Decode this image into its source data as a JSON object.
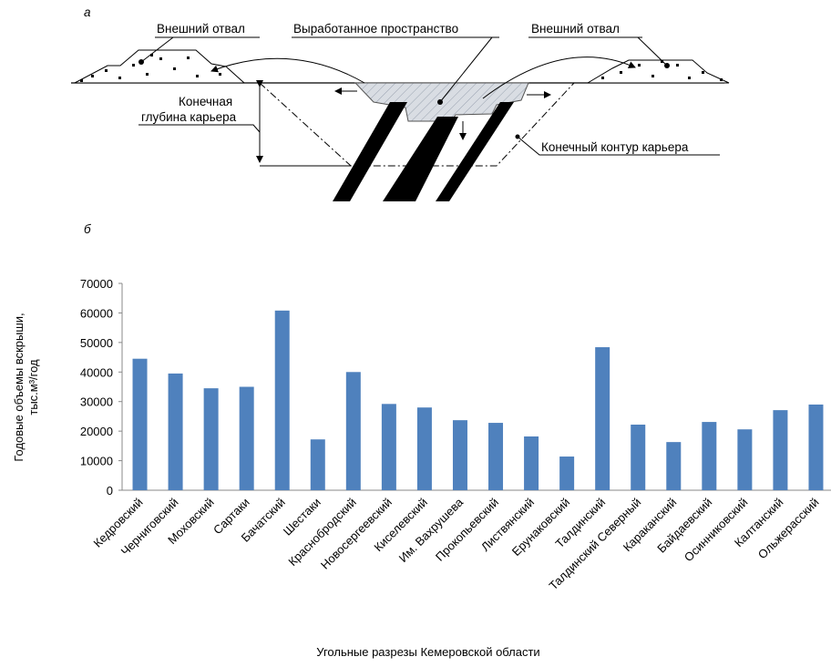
{
  "diagram": {
    "panel_label": "а",
    "labels": {
      "left_dump": "Внешний отвал",
      "mined_space": "Выработанное пространство",
      "right_dump": "Внешний отвал",
      "depth_line1": "Конечная",
      "depth_line2": "глубина карьера",
      "contour": "Конечный контур карьера"
    }
  },
  "chart_panel_label": "б",
  "chart_data": {
    "type": "bar",
    "y_label_lines": [
      "Годовые объемы вскрыши,",
      "тыс.м³/год"
    ],
    "x_label": "Угольные разрезы Кемеровской области",
    "categories": [
      "Кедровский",
      "Черниговский",
      "Моховский",
      "Сартаки",
      "Бачатский",
      "Шестаки",
      "Краснобродский",
      "Новосергеевский",
      "Киселевский",
      "Им. Вахрушева",
      "Прокопьевский",
      "Листвянский",
      "Ерунаковский",
      "Талдинский",
      "Талдинский Северный",
      "Караканский",
      "Байдаевский",
      "Осинниковский",
      "Калтанский",
      "Ольжерасский"
    ],
    "values": [
      44500,
      39500,
      34500,
      35000,
      60800,
      17200,
      40000,
      29200,
      28000,
      23700,
      22800,
      18200,
      11400,
      48400,
      22200,
      16300,
      23100,
      20600,
      27100,
      29000
    ],
    "color": "#4f81bd",
    "ylim": [
      0,
      70000
    ],
    "yticks": [
      0,
      10000,
      20000,
      30000,
      40000,
      50000,
      60000,
      70000
    ],
    "grid": false
  }
}
